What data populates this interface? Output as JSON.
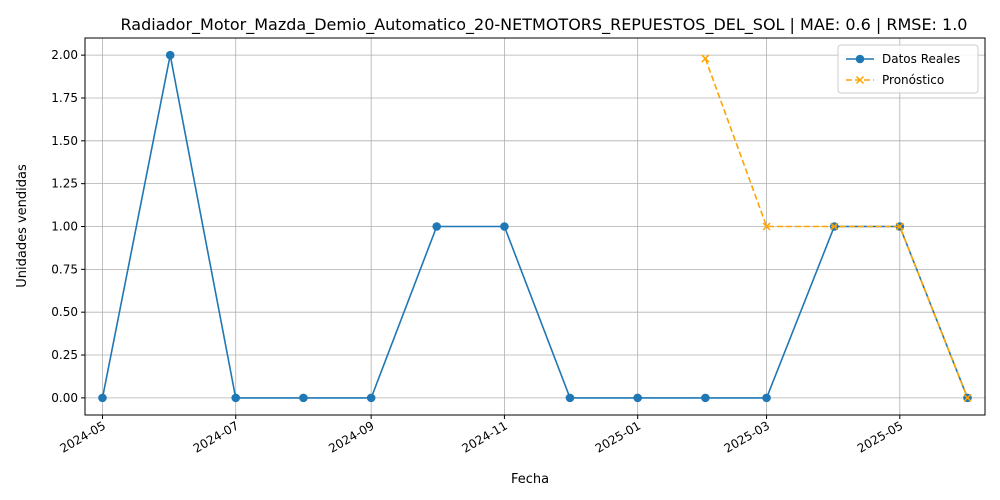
{
  "chart_data": {
    "type": "line",
    "title": "Radiador_Motor_Mazda_Demio_Automatico_20-NETMOTORS_REPUESTOS_DEL_SOL | MAE: 0.6 | RMSE: 1.0",
    "xlabel": "Fecha",
    "ylabel": "Unidades vendidas",
    "x_ticks": [
      "2024-05",
      "2024-07",
      "2024-09",
      "2024-11",
      "2025-01",
      "2025-03",
      "2025-05"
    ],
    "y_ticks": [
      "0.00",
      "0.25",
      "0.50",
      "0.75",
      "1.00",
      "1.25",
      "1.50",
      "1.75",
      "2.00"
    ],
    "ylim": [
      -0.1,
      2.1
    ],
    "xlim": [
      "2024-04-23",
      "2025-06-09"
    ],
    "grid": true,
    "legend_position": "top-right",
    "series": [
      {
        "name": "Datos Reales",
        "color": "#1f77b4",
        "style": "solid",
        "marker": "circle",
        "x": [
          "2024-05-01",
          "2024-06-01",
          "2024-07-01",
          "2024-08-01",
          "2024-09-01",
          "2024-10-01",
          "2024-11-01",
          "2024-12-01",
          "2025-01-01",
          "2025-02-01",
          "2025-03-01",
          "2025-04-01",
          "2025-05-01",
          "2025-06-01"
        ],
        "values": [
          0,
          2,
          0,
          0,
          0,
          1,
          1,
          0,
          0,
          0,
          0,
          1,
          1,
          0
        ]
      },
      {
        "name": "Pronóstico",
        "color": "#ffa500",
        "style": "dashed",
        "marker": "x",
        "x": [
          "2025-02-01",
          "2025-03-01",
          "2025-04-01",
          "2025-05-01",
          "2025-06-01"
        ],
        "values": [
          1.98,
          1,
          1,
          1,
          0
        ]
      }
    ]
  }
}
